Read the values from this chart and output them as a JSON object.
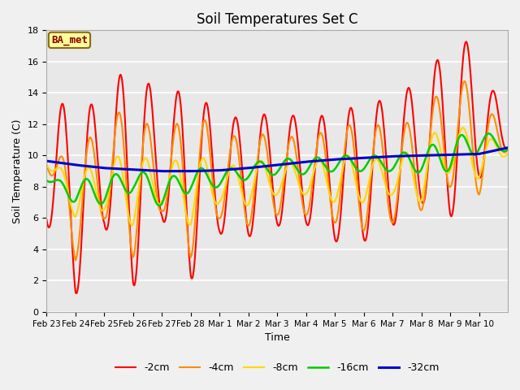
{
  "title": "Soil Temperatures Set C",
  "xlabel": "Time",
  "ylabel": "Soil Temperature (C)",
  "ylim": [
    0,
    18
  ],
  "annotation": "BA_met",
  "annotation_color": "#8B0000",
  "annotation_bg": "#FFFF99",
  "legend_labels": [
    "-2cm",
    "-4cm",
    "-8cm",
    "-16cm",
    "-32cm"
  ],
  "legend_colors": [
    "#FF0000",
    "#FF8C00",
    "#FFD700",
    "#00CC00",
    "#0000CD"
  ],
  "line_widths": [
    1.5,
    1.5,
    1.5,
    1.8,
    2.2
  ],
  "xtick_labels": [
    "Feb 23",
    "Feb 24",
    "Feb 25",
    "Feb 26",
    "Feb 27",
    "Feb 28",
    "Mar 1",
    "Mar 2",
    "Mar 3",
    "Mar 4",
    "Mar 5",
    "Mar 6",
    "Mar 7",
    "Mar 8",
    "Mar 9",
    "Mar 10"
  ],
  "n_days": 16,
  "base_2cm": [
    9.7,
    7.0,
    9.5,
    9.0,
    9.5,
    8.5,
    8.5,
    8.8,
    9.0,
    9.1,
    8.5,
    9.0,
    9.5,
    11.0,
    11.5,
    13.0,
    10.7
  ],
  "amp_2cm": [
    4.0,
    6.0,
    4.0,
    7.5,
    3.5,
    6.5,
    3.5,
    4.0,
    3.5,
    3.5,
    4.0,
    4.5,
    4.0,
    4.0,
    5.5,
    4.5,
    0.3
  ],
  "base_4cm": [
    9.5,
    6.8,
    9.0,
    8.5,
    8.5,
    8.5,
    8.5,
    8.5,
    8.7,
    8.7,
    8.7,
    8.7,
    8.7,
    9.5,
    11.5,
    11.0,
    10.5
  ],
  "amp_4cm": [
    0.1,
    3.5,
    3.0,
    5.0,
    2.0,
    5.0,
    2.5,
    3.0,
    2.5,
    2.5,
    3.0,
    3.5,
    3.0,
    3.0,
    3.5,
    3.5,
    0.1
  ],
  "base_8cm": [
    9.4,
    7.5,
    8.0,
    8.0,
    8.0,
    8.0,
    8.0,
    8.3,
    8.5,
    8.5,
    8.5,
    8.5,
    8.5,
    9.0,
    10.5,
    10.0,
    10.3
  ],
  "amp_8cm": [
    0.0,
    1.5,
    1.5,
    2.5,
    1.0,
    2.5,
    1.0,
    1.5,
    1.0,
    1.0,
    1.5,
    1.5,
    1.0,
    2.0,
    1.5,
    1.5,
    0.2
  ],
  "base_16cm": [
    8.4,
    7.7,
    7.7,
    8.5,
    7.5,
    8.5,
    8.5,
    9.0,
    9.3,
    9.3,
    9.5,
    9.5,
    9.5,
    9.7,
    10.0,
    11.0,
    10.5
  ],
  "amp_16cm": [
    0.0,
    0.8,
    0.8,
    0.8,
    0.8,
    0.8,
    0.5,
    0.5,
    0.5,
    0.5,
    0.5,
    0.5,
    0.5,
    0.8,
    1.0,
    0.8,
    0.2
  ],
  "base_32cm": [
    9.65,
    9.4,
    9.2,
    9.1,
    9.0,
    9.0,
    9.05,
    9.2,
    9.4,
    9.6,
    9.75,
    9.85,
    9.95,
    10.0,
    10.05,
    10.1,
    10.5
  ]
}
